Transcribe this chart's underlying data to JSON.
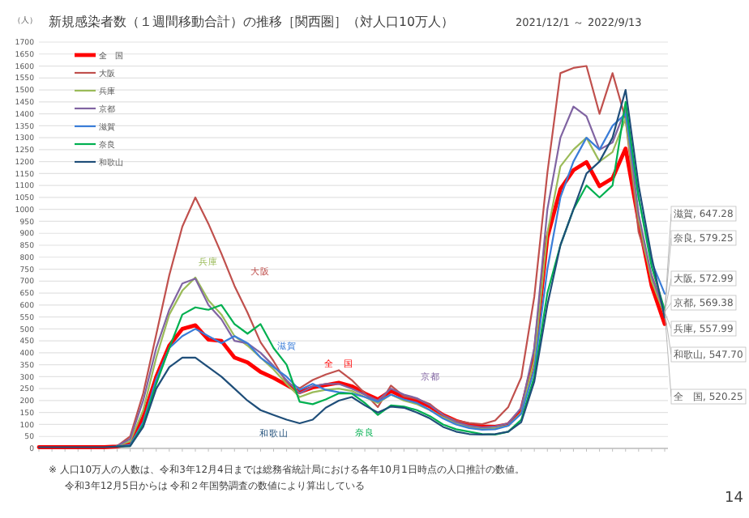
{
  "chart_data": {
    "type": "line",
    "title": "新規感染者数（１週間移動合計）の推移［関西圏］（対人口10万人）",
    "subtitle": "2021/12/1 ～ 2022/9/13",
    "ylabel": "（人）",
    "categories": [
      null,
      null,
      null,
      null,
      null,
      null,
      null,
      null,
      null,
      null,
      null,
      null,
      null,
      null,
      null,
      null,
      null,
      null,
      null,
      null,
      null,
      null,
      null,
      null,
      null,
      null,
      null,
      null,
      null,
      null,
      null,
      null,
      null,
      null,
      null,
      null,
      null,
      null,
      null,
      null,
      null,
      null,
      null,
      null,
      null,
      null,
      null,
      null,
      null
    ],
    "ylim": [
      0,
      1700
    ],
    "yticks": [
      0,
      50,
      100,
      150,
      200,
      250,
      300,
      350,
      400,
      450,
      500,
      550,
      600,
      650,
      700,
      750,
      800,
      850,
      900,
      950,
      1000,
      1050,
      1100,
      1150,
      1200,
      1250,
      1300,
      1350,
      1400,
      1450,
      1500,
      1550,
      1600,
      1650,
      1700
    ],
    "grid": "y",
    "legend": "top left",
    "series": [
      {
        "name": "全　国",
        "color": "#ff0000",
        "values": [
          5,
          5,
          5,
          5,
          5,
          5,
          8,
          20,
          130,
          300,
          430,
          500,
          515,
          455,
          450,
          380,
          360,
          320,
          295,
          265,
          235,
          255,
          265,
          275,
          260,
          230,
          205,
          240,
          215,
          200,
          175,
          140,
          115,
          100,
          92,
          90,
          100,
          160,
          380,
          883,
          1085,
          1164,
          1198,
          1097,
          1130,
          1255,
          950,
          680,
          520.25
        ]
      },
      {
        "name": "大阪",
        "color": "#c0504d",
        "values": [
          null,
          null,
          null,
          null,
          null,
          null,
          10,
          50,
          230,
          477,
          725,
          928,
          1050,
          940,
          815,
          680,
          568,
          444,
          365,
          275,
          252,
          286,
          309,
          327,
          286,
          230,
          173,
          263,
          218,
          207,
          185,
          140,
          117,
          106,
          101,
          117,
          173,
          297,
          635,
          1153,
          1570,
          1592,
          1600,
          1400,
          1570,
          1378,
          905,
          725,
          572.99
        ]
      },
      {
        "name": "兵庫",
        "color": "#9bbb59",
        "values": [
          null,
          null,
          null,
          null,
          null,
          null,
          10,
          30,
          160,
          380,
          560,
          660,
          715,
          620,
          560,
          470,
          430,
          380,
          330,
          270,
          215,
          235,
          245,
          250,
          240,
          215,
          190,
          225,
          200,
          185,
          160,
          130,
          105,
          90,
          82,
          85,
          95,
          150,
          370,
          900,
          1180,
          1250,
          1300,
          1200,
          1240,
          1380,
          960,
          700,
          557.99
        ]
      },
      {
        "name": "京都",
        "color": "#8064a2",
        "values": [
          null,
          null,
          null,
          null,
          null,
          null,
          10,
          40,
          200,
          420,
          580,
          690,
          710,
          600,
          540,
          450,
          440,
          400,
          345,
          285,
          230,
          260,
          270,
          270,
          250,
          225,
          200,
          250,
          225,
          210,
          180,
          140,
          110,
          95,
          88,
          92,
          105,
          170,
          420,
          1000,
          1300,
          1430,
          1390,
          1250,
          1280,
          1420,
          980,
          720,
          569.38
        ]
      },
      {
        "name": "滋賀",
        "color": "#3a7dd8",
        "values": [
          null,
          null,
          null,
          null,
          null,
          null,
          8,
          15,
          110,
          290,
          420,
          470,
          500,
          470,
          440,
          470,
          440,
          380,
          340,
          300,
          245,
          270,
          245,
          235,
          230,
          215,
          195,
          225,
          205,
          190,
          160,
          125,
          100,
          85,
          78,
          80,
          95,
          145,
          330,
          750,
          1050,
          1200,
          1300,
          1250,
          1350,
          1400,
          1050,
          780,
          647.28
        ]
      },
      {
        "name": "奈良",
        "color": "#00b050",
        "values": [
          null,
          null,
          null,
          null,
          null,
          null,
          8,
          10,
          100,
          270,
          420,
          560,
          590,
          580,
          600,
          520,
          480,
          520,
          420,
          350,
          195,
          185,
          205,
          230,
          230,
          190,
          140,
          180,
          175,
          160,
          135,
          100,
          80,
          70,
          60,
          58,
          70,
          120,
          300,
          650,
          850,
          1000,
          1100,
          1050,
          1100,
          1450,
          1050,
          760,
          579.25
        ]
      },
      {
        "name": "和歌山",
        "color": "#1f4e79",
        "values": [
          5,
          5,
          5,
          5,
          5,
          5,
          8,
          10,
          90,
          250,
          340,
          380,
          380,
          340,
          300,
          250,
          200,
          160,
          140,
          120,
          105,
          120,
          170,
          200,
          215,
          180,
          150,
          175,
          170,
          150,
          125,
          90,
          70,
          60,
          58,
          60,
          70,
          110,
          280,
          600,
          850,
          1000,
          1150,
          1200,
          1300,
          1500,
          1100,
          800,
          547.7
        ]
      }
    ],
    "annotations": [
      "滋賀, 647.28",
      "奈良, 579.25",
      "大阪, 572.99",
      "京都, 569.38",
      "兵庫, 557.99",
      "和歌山, 547.70",
      "全　国, 520.25",
      "※ 人口10万人の人数は、令和3年12月4日までは総務省統計局における各年10月1日時点の人口推計の数値。",
      "令和3年12月5日からは 令和２年国勢調査の数値により算出している",
      "14"
    ]
  }
}
